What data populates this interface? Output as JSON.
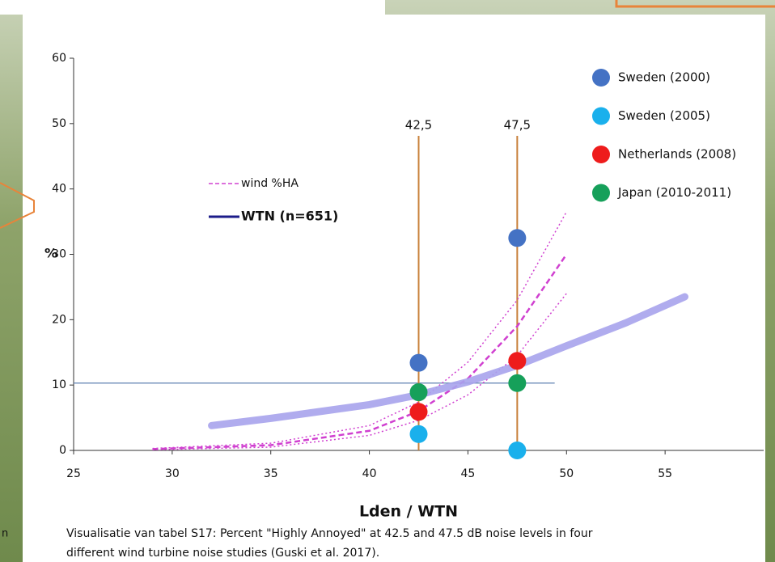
{
  "chart_data": {
    "type": "scatter",
    "xlabel": "Lden / WTN",
    "ylabel": "%",
    "xlim": [
      25,
      60
    ],
    "ylim": [
      0,
      60
    ],
    "xticks": [
      25,
      30,
      35,
      40,
      45,
      50,
      55
    ],
    "yticks": [
      0,
      10,
      20,
      30,
      40,
      50,
      60
    ],
    "series": [
      {
        "name": "Sweden (2000)",
        "color": "#4472c4",
        "x": [
          42.5,
          47.5
        ],
        "values": [
          13.4,
          32.5
        ]
      },
      {
        "name": "Sweden (2005)",
        "color": "#1ab0ec",
        "x": [
          42.5,
          47.5
        ],
        "values": [
          2.5,
          0
        ]
      },
      {
        "name": "Netherlands (2008)",
        "color": "#ee1c1c",
        "x": [
          42.5,
          47.5
        ],
        "values": [
          5.9,
          13.7
        ]
      },
      {
        "name": "Japan (2010-2011)",
        "color": "#16a05a",
        "x": [
          42.5,
          47.5
        ],
        "values": [
          8.9,
          10.3
        ]
      }
    ],
    "lines": [
      {
        "name": "wind %HA",
        "color": "#d040d0",
        "legend_color": "#d040d0",
        "x": [
          29,
          35,
          40,
          42.5,
          45,
          47.5,
          50
        ],
        "values": [
          0.2,
          0.8,
          3,
          6,
          11,
          19,
          30
        ],
        "lower": [
          0.1,
          0.5,
          2.3,
          4.6,
          8.5,
          14.5,
          24
        ],
        "upper": [
          0.3,
          1.1,
          3.8,
          7.4,
          13.5,
          23,
          36.5
        ]
      },
      {
        "name": "WTN (n=651)",
        "color": "#a7a3ec",
        "legend_color": "#1c1c8a",
        "x": [
          32,
          35,
          40,
          42.5,
          45,
          47.5,
          50,
          53,
          56
        ],
        "values": [
          3.8,
          4.9,
          7,
          8.5,
          10.5,
          13,
          16,
          19.5,
          23.5
        ]
      }
    ],
    "vlines": [
      {
        "value": 42.5,
        "label": "42,5"
      },
      {
        "value": 47.5,
        "label": "47,5"
      }
    ],
    "hline": {
      "value": 10.3,
      "xmax": 49.4
    },
    "caption": [
      "Visualisatie van tabel S17: Percent \"Highly Annoyed\" at 42.5 and 47.5 dB noise levels in four",
      "different wind turbine noise studies (Guski et al. 2017)."
    ]
  },
  "page": {
    "side_text": "n"
  }
}
